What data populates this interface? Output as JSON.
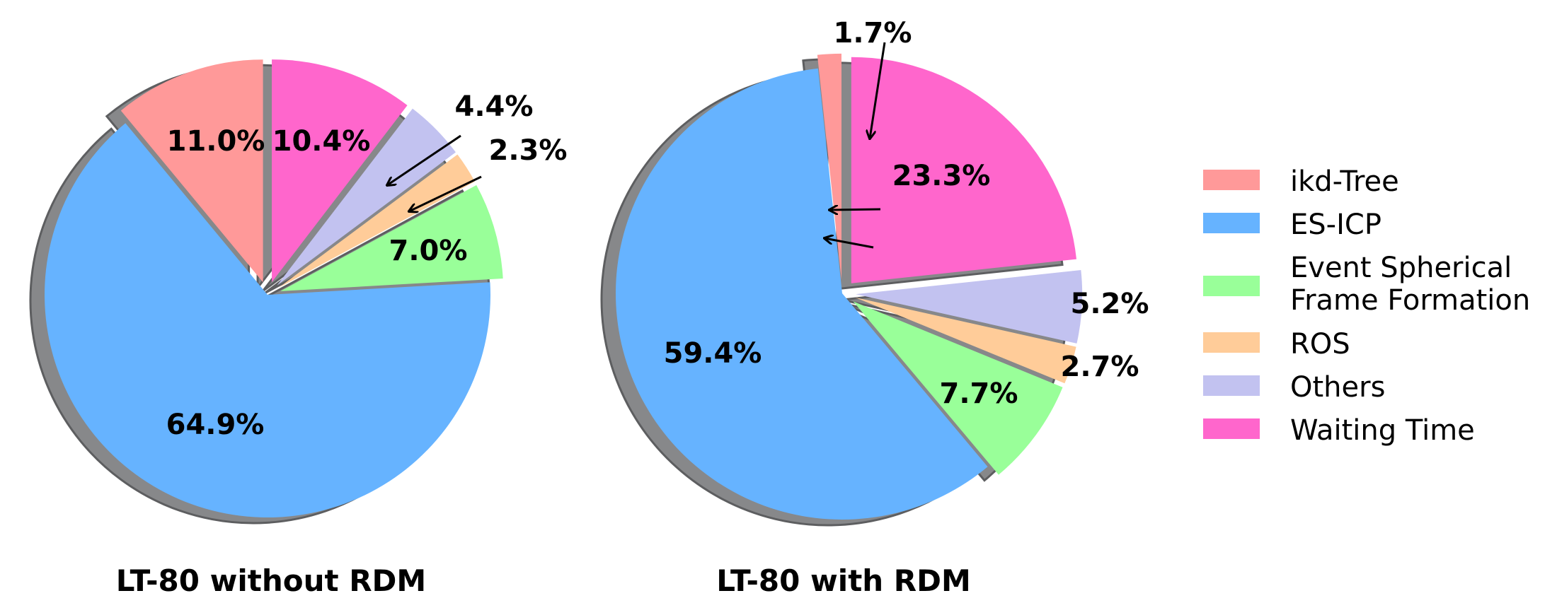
{
  "chart_data": [
    {
      "type": "pie",
      "title": "LT-80 without RDM",
      "categories": [
        "ikd-Tree",
        "ES-ICP",
        "Event Spherical Frame Formation",
        "ROS",
        "Others",
        "Waiting Time"
      ],
      "values": [
        11.0,
        64.9,
        7.0,
        2.3,
        4.4,
        10.4
      ],
      "labels": [
        "11.0%",
        "64.9%",
        "7.0%",
        "2.3%",
        "4.4%",
        "10.4%"
      ],
      "colors": [
        "#ff9999",
        "#66b3ff",
        "#99ff99",
        "#ffcc99",
        "#c2c2f0",
        "#ff66cc"
      ],
      "explode": [
        0.06,
        0,
        0.06,
        0.06,
        0.06,
        0.06
      ],
      "start_angle": 90,
      "shadow": true
    },
    {
      "type": "pie",
      "title": "LT-80 with RDM",
      "categories": [
        "ikd-Tree",
        "ES-ICP",
        "Event Spherical Frame Formation",
        "ROS",
        "Others",
        "Waiting Time"
      ],
      "values": [
        1.7,
        59.4,
        7.7,
        2.7,
        5.2,
        23.3
      ],
      "labels": [
        "1.7%",
        "59.4%",
        "7.7%",
        "2.7%",
        "5.2%",
        "23.3%"
      ],
      "colors": [
        "#ff9999",
        "#66b3ff",
        "#99ff99",
        "#ffcc99",
        "#c2c2f0",
        "#ff66cc"
      ],
      "explode": [
        0.06,
        0,
        0.06,
        0.06,
        0.06,
        0.06
      ],
      "start_angle": 90,
      "shadow": true
    }
  ],
  "legend": {
    "position": "right",
    "items": [
      {
        "label": "ikd-Tree",
        "color": "#ff9999"
      },
      {
        "label": "ES-ICP",
        "color": "#66b3ff"
      },
      {
        "label": "Event Spherical",
        "label2": "Frame Formation",
        "color": "#99ff99"
      },
      {
        "label": "ROS",
        "color": "#ffcc99"
      },
      {
        "label": "Others",
        "color": "#c2c2f0"
      },
      {
        "label": "Waiting Time",
        "color": "#ff66cc"
      }
    ]
  }
}
